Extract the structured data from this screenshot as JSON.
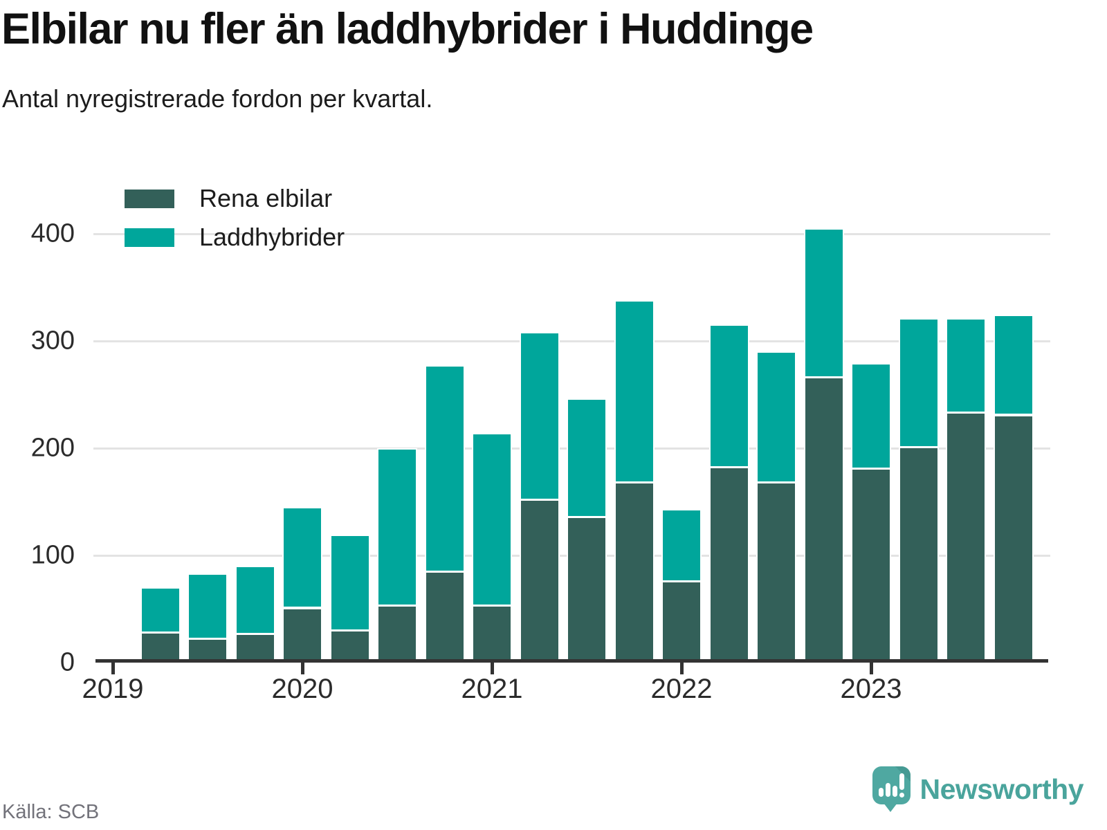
{
  "title": "Elbilar nu fler än laddhybrider i Huddinge",
  "subtitle": "Antal nyregistrerade fordon per kvartal.",
  "source": "Källa: SCB",
  "brand": {
    "name": "Newsworthy",
    "logo_color": "#4fa8a1",
    "text_color": "#4aa49c"
  },
  "legend": [
    {
      "label": "Rena elbilar",
      "color": "#336059"
    },
    {
      "label": "Laddhybrider",
      "color": "#00a69b"
    }
  ],
  "colors": {
    "dark_series": "#336059",
    "teal_series": "#00a69b",
    "gridline": "#e3e3e3",
    "axis": "#333333",
    "text": "#2b2b2b"
  },
  "chart_data": {
    "type": "bar",
    "stacked": true,
    "title": "Elbilar nu fler än laddhybrider i Huddinge",
    "subtitle": "Antal nyregistrerade fordon per kvartal.",
    "xlabel": "",
    "ylabel": "",
    "ylim": [
      0,
      430
    ],
    "grid": "horizontal",
    "legend_position": "top-left",
    "y_ticks": [
      0,
      100,
      200,
      300,
      400
    ],
    "x_tick_labels": [
      "2019",
      "2020",
      "2021",
      "2022",
      "2023"
    ],
    "categories": [
      "2019 Q2",
      "2019 Q3",
      "2019 Q4",
      "2020 Q1",
      "2020 Q2",
      "2020 Q3",
      "2020 Q4",
      "2021 Q1",
      "2021 Q2",
      "2021 Q3",
      "2021 Q4",
      "2022 Q1",
      "2022 Q2",
      "2022 Q3",
      "2022 Q4",
      "2023 Q1",
      "2023 Q2",
      "2023 Q3",
      "2023 Q4"
    ],
    "series": [
      {
        "name": "Rena elbilar",
        "color": "#336059",
        "values": [
          27,
          21,
          26,
          50,
          29,
          52,
          84,
          52,
          151,
          135,
          167,
          75,
          181,
          167,
          265,
          180,
          200,
          232,
          230
        ]
      },
      {
        "name": "Laddhybrider",
        "color": "#00a69b",
        "values": [
          42,
          61,
          63,
          94,
          89,
          147,
          192,
          161,
          156,
          110,
          170,
          67,
          133,
          122,
          139,
          98,
          120,
          88,
          93
        ]
      }
    ],
    "totals": [
      69,
      82,
      89,
      144,
      118,
      199,
      276,
      213,
      307,
      245,
      337,
      142,
      314,
      289,
      404,
      278,
      320,
      320,
      323
    ]
  }
}
